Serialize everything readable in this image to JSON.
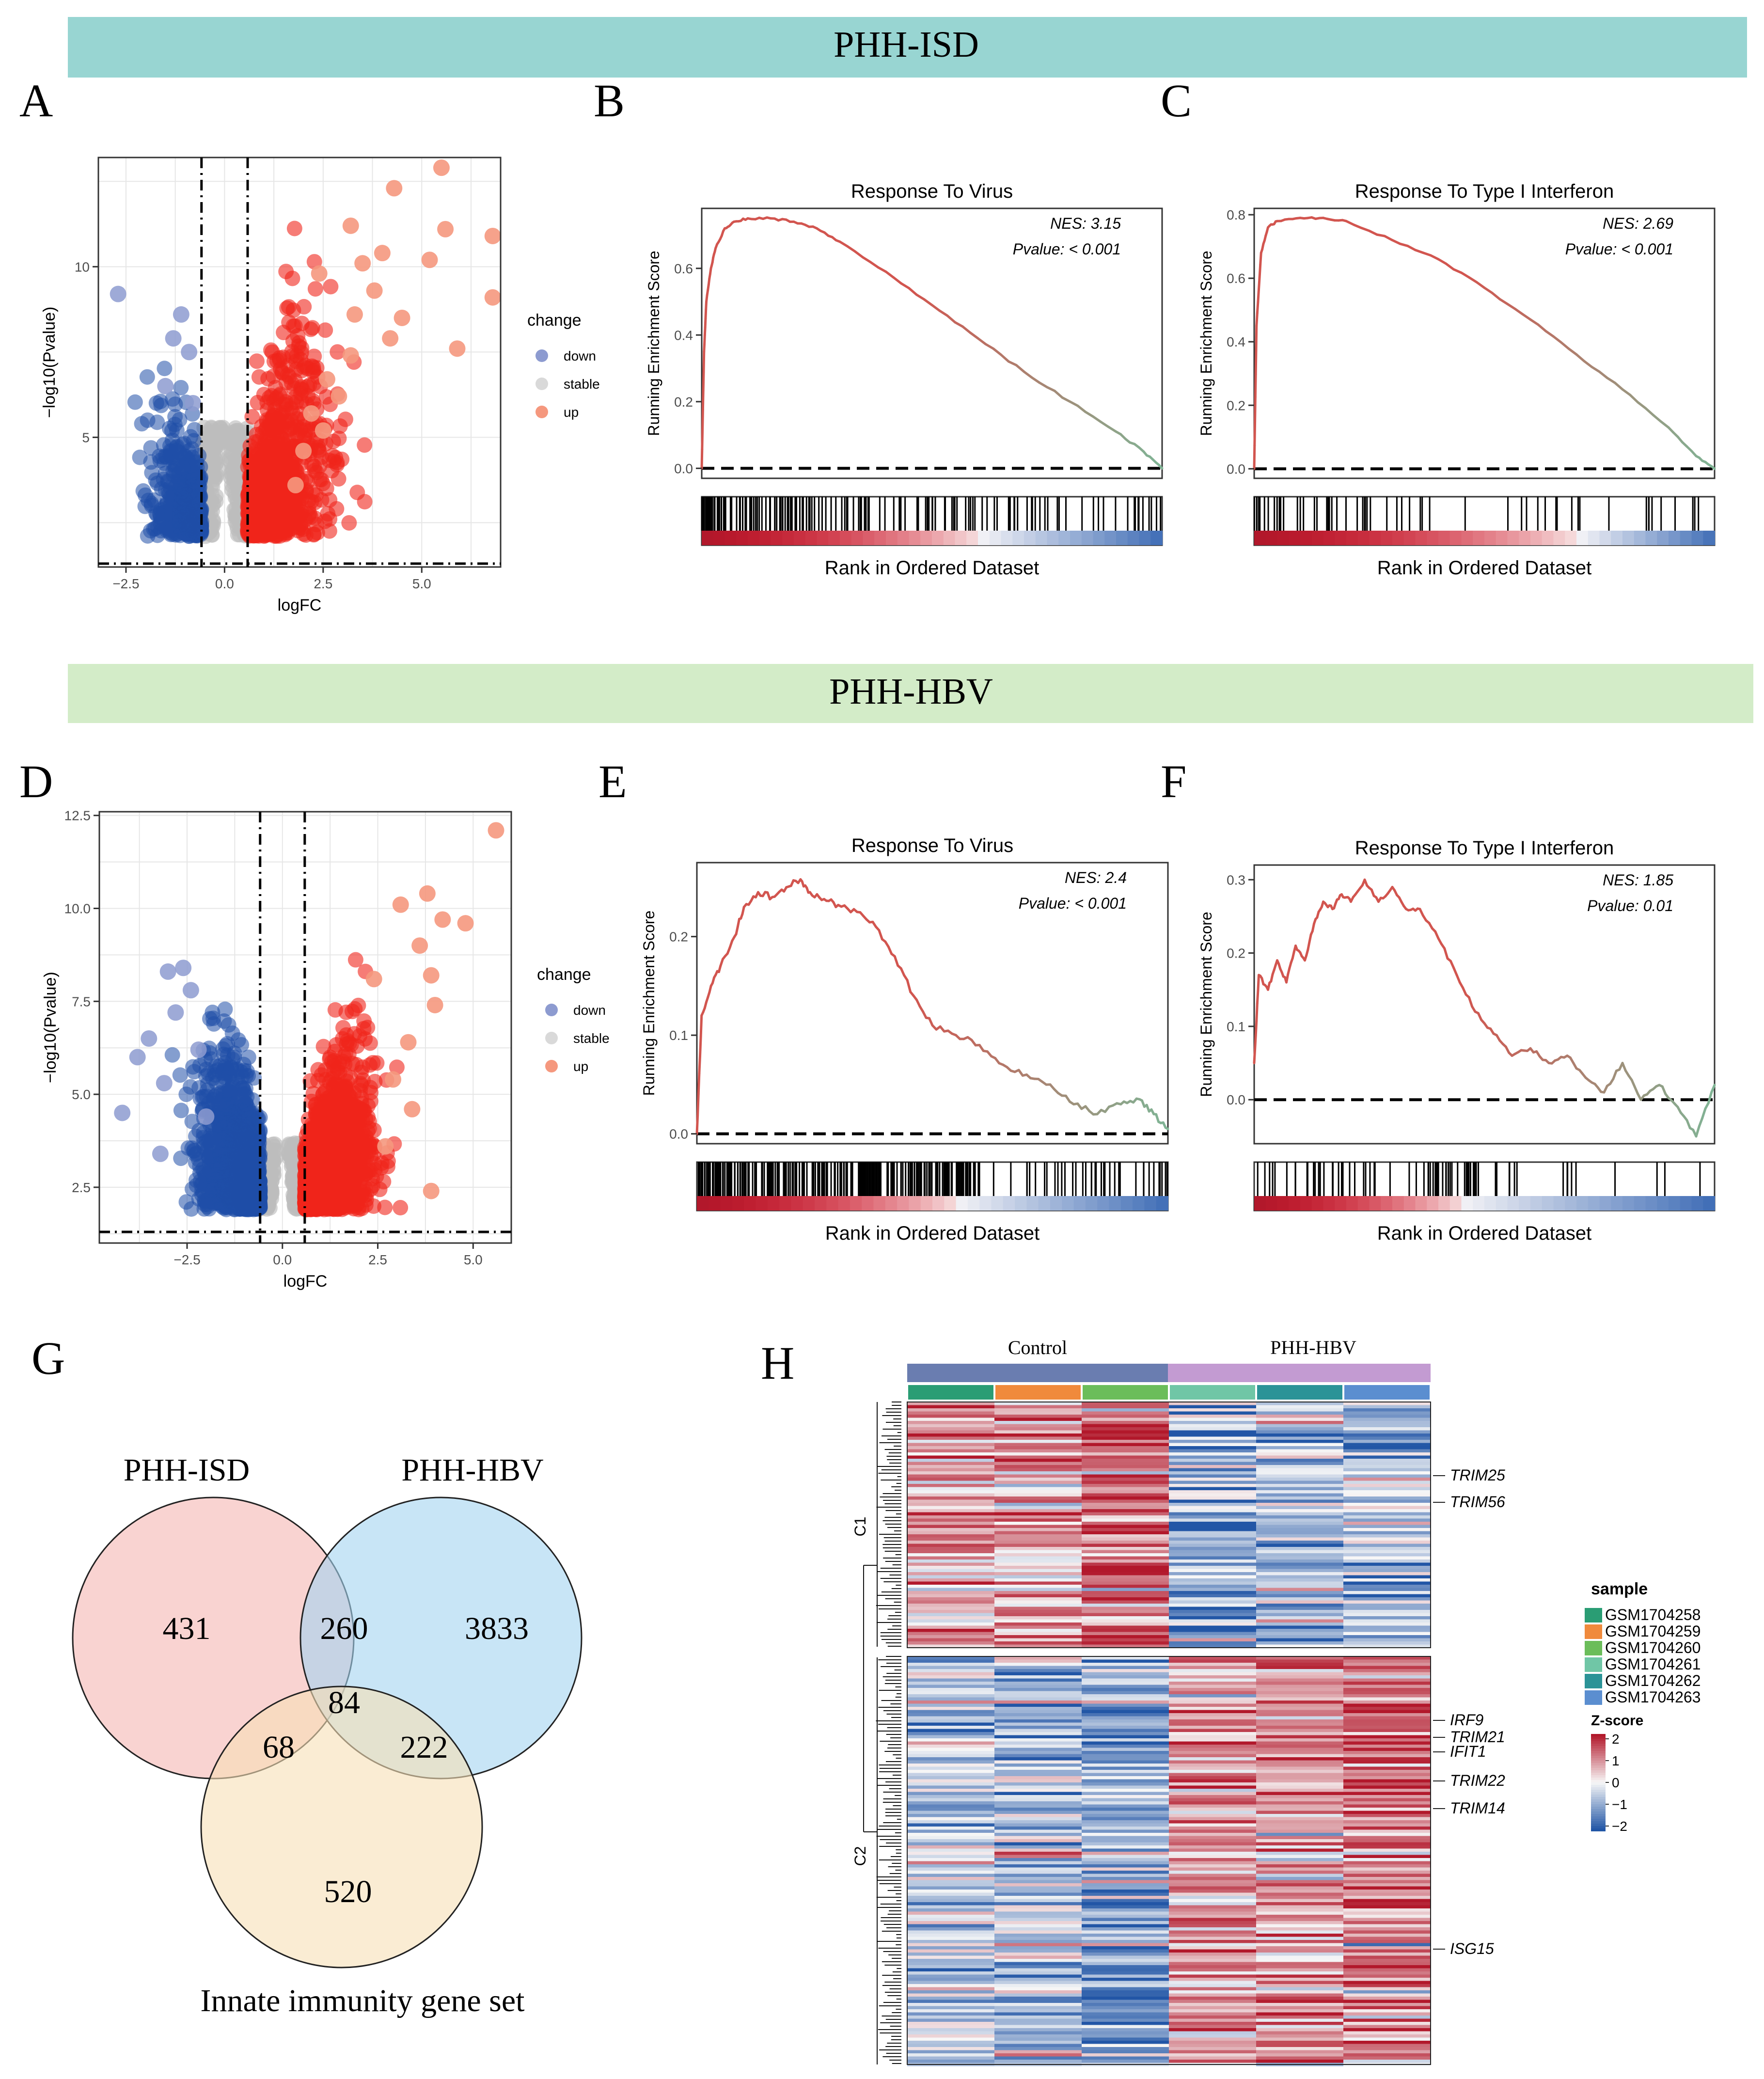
{
  "banners": [
    {
      "label": "PHH-ISD",
      "color": "#98d5d2"
    },
    {
      "label": "PHH-HBV",
      "color": "#d3ecc8"
    }
  ],
  "panel_letters": [
    "A",
    "B",
    "C",
    "D",
    "E",
    "F",
    "G",
    "H"
  ],
  "colors": {
    "down": "#1f4fa8",
    "down_light": "#8d9bd0",
    "stable": "#bdbdbd",
    "up": "#f0251a",
    "up_light": "#f5987e",
    "grid": "#e6e6e6",
    "gsea_red": "#d2554f",
    "gsea_green": "#7fb596",
    "heat_red": "#b2182b",
    "heat_white": "#f7f7f7",
    "heat_blue": "#2256a6",
    "venn_isd": "#f5b5b3",
    "venn_hbv": "#a4d4f0",
    "venn_innate": "#f6dfb5"
  },
  "chart_data": [
    {
      "id": "A",
      "type": "scatter",
      "subtype": "volcano",
      "title": "",
      "xlabel": "logFC",
      "ylabel": "−log10(Pvalue)",
      "xlim": [
        -3.2,
        7.0
      ],
      "ylim": [
        1.2,
        13.2
      ],
      "xticks": [
        -2.5,
        0.0,
        2.5,
        5.0
      ],
      "xtick_labels": [
        "−2.5",
        "0.0",
        "2.5",
        "5.0"
      ],
      "yticks": [
        5,
        10
      ],
      "ytick_labels": [
        "5",
        "10"
      ],
      "thresholds": {
        "logFC": [
          -0.585,
          0.585
        ],
        "neglog10p": 1.3
      },
      "legend": {
        "title": "change",
        "items": [
          "down",
          "stable",
          "up"
        ]
      },
      "highlight_points": {
        "down": [
          [
            -2.7,
            9.2
          ],
          [
            -1.1,
            8.6
          ],
          [
            -1.3,
            7.9
          ],
          [
            -0.9,
            7.5
          ],
          [
            -1.5,
            6.5
          ],
          [
            -0.8,
            6.0
          ]
        ],
        "up": [
          [
            5.5,
            12.9
          ],
          [
            4.3,
            12.3
          ],
          [
            5.6,
            11.1
          ],
          [
            6.8,
            10.9
          ],
          [
            3.2,
            11.2
          ],
          [
            5.2,
            10.2
          ],
          [
            6.8,
            9.1
          ],
          [
            3.8,
            9.3
          ],
          [
            5.9,
            7.6
          ],
          [
            3.3,
            8.6
          ],
          [
            4.5,
            8.5
          ],
          [
            4.2,
            7.9
          ],
          [
            2.6,
            6.7
          ],
          [
            2.9,
            6.2
          ],
          [
            2.2,
            5.7
          ],
          [
            2.5,
            5.2
          ],
          [
            3.2,
            7.4
          ],
          [
            2.0,
            4.6
          ],
          [
            3.5,
            10.1
          ],
          [
            2.4,
            9.8
          ],
          [
            4.0,
            10.4
          ],
          [
            1.8,
            3.6
          ]
        ]
      }
    },
    {
      "id": "B",
      "type": "line",
      "subtype": "gsea",
      "title": "Response To Virus",
      "ylabel": "Running Enrichment Score",
      "xlabel": "Rank in Ordered Dataset",
      "yticks": [
        0.0,
        0.2,
        0.4,
        0.6
      ],
      "ytick_labels": [
        "0.0",
        "0.2",
        "0.4",
        "0.6"
      ],
      "ylim": [
        -0.03,
        0.78
      ],
      "nes_label": "NES: 3.15",
      "pvalue_label": "Pvalue: < 0.001",
      "curve_points": [
        [
          0,
          0.0
        ],
        [
          0.005,
          0.35
        ],
        [
          0.01,
          0.5
        ],
        [
          0.02,
          0.6
        ],
        [
          0.03,
          0.66
        ],
        [
          0.05,
          0.72
        ],
        [
          0.07,
          0.74
        ],
        [
          0.1,
          0.75
        ],
        [
          0.15,
          0.75
        ],
        [
          0.2,
          0.74
        ],
        [
          0.25,
          0.72
        ],
        [
          0.3,
          0.68
        ],
        [
          0.4,
          0.59
        ],
        [
          0.5,
          0.49
        ],
        [
          0.6,
          0.39
        ],
        [
          0.7,
          0.29
        ],
        [
          0.8,
          0.2
        ],
        [
          0.9,
          0.11
        ],
        [
          0.96,
          0.05
        ],
        [
          1.0,
          0.0
        ]
      ],
      "hits": {
        "n": 180,
        "concentration": "front"
      },
      "rank_gradient": {
        "red_fraction": 0.6,
        "blue_fraction": 0.4
      }
    },
    {
      "id": "C",
      "type": "line",
      "subtype": "gsea",
      "title": "Response To Type I Interferon",
      "ylabel": "Running Enrichment Score",
      "xlabel": "Rank in Ordered Dataset",
      "yticks": [
        0.0,
        0.2,
        0.4,
        0.6,
        0.8
      ],
      "ytick_labels": [
        "0.0",
        "0.2",
        "0.4",
        "0.6",
        "0.8"
      ],
      "ylim": [
        -0.03,
        0.82
      ],
      "nes_label": "NES: 2.69",
      "pvalue_label": "Pvalue: < 0.001",
      "curve_points": [
        [
          0,
          0.0
        ],
        [
          0.005,
          0.45
        ],
        [
          0.015,
          0.68
        ],
        [
          0.03,
          0.76
        ],
        [
          0.05,
          0.78
        ],
        [
          0.1,
          0.79
        ],
        [
          0.15,
          0.79
        ],
        [
          0.2,
          0.78
        ],
        [
          0.3,
          0.72
        ],
        [
          0.4,
          0.66
        ],
        [
          0.5,
          0.57
        ],
        [
          0.6,
          0.47
        ],
        [
          0.7,
          0.36
        ],
        [
          0.8,
          0.25
        ],
        [
          0.9,
          0.13
        ],
        [
          0.96,
          0.04
        ],
        [
          1.0,
          0.0
        ]
      ],
      "hits": {
        "n": 60,
        "concentration": "front"
      },
      "rank_gradient": {
        "red_fraction": 0.7,
        "blue_fraction": 0.3
      }
    },
    {
      "id": "D",
      "type": "scatter",
      "subtype": "volcano",
      "title": "",
      "xlabel": "logFC",
      "ylabel": "−log10(Pvalue)",
      "xlim": [
        -4.8,
        6.0
      ],
      "ylim": [
        1.0,
        12.6
      ],
      "xticks": [
        -2.5,
        0.0,
        2.5,
        5.0
      ],
      "xtick_labels": [
        "−2.5",
        "0.0",
        "2.5",
        "5.0"
      ],
      "yticks": [
        2.5,
        5.0,
        7.5,
        10.0,
        12.5
      ],
      "ytick_labels": [
        "2.5",
        "5.0",
        "7.5",
        "10.0",
        "12.5"
      ],
      "thresholds": {
        "logFC": [
          -0.585,
          0.585
        ],
        "neglog10p": 1.3
      },
      "legend": {
        "title": "change",
        "items": [
          "down",
          "stable",
          "up"
        ]
      },
      "highlight_points": {
        "down": [
          [
            -4.2,
            4.5
          ],
          [
            -3.2,
            3.4
          ],
          [
            -3.0,
            8.3
          ],
          [
            -2.6,
            8.4
          ],
          [
            -3.5,
            6.5
          ],
          [
            -2.8,
            7.2
          ],
          [
            -2.2,
            6.2
          ],
          [
            -3.8,
            6.0
          ],
          [
            -3.1,
            5.3
          ],
          [
            -2.4,
            7.8
          ],
          [
            -2.0,
            4.4
          ]
        ],
        "up": [
          [
            5.6,
            12.1
          ],
          [
            3.8,
            10.4
          ],
          [
            4.2,
            9.7
          ],
          [
            4.8,
            9.6
          ],
          [
            3.6,
            9.0
          ],
          [
            3.9,
            8.2
          ],
          [
            4.0,
            7.4
          ],
          [
            3.3,
            6.4
          ],
          [
            2.9,
            5.4
          ],
          [
            3.9,
            2.4
          ],
          [
            2.7,
            3.6
          ],
          [
            3.1,
            10.1
          ],
          [
            2.4,
            8.1
          ],
          [
            3.4,
            4.6
          ]
        ]
      }
    },
    {
      "id": "E",
      "type": "line",
      "subtype": "gsea",
      "title": "Response To Virus",
      "ylabel": "Running Enrichment Score",
      "xlabel": "Rank in Ordered Dataset",
      "yticks": [
        0.0,
        0.1,
        0.2
      ],
      "ytick_labels": [
        "0.0",
        "0.1",
        "0.2"
      ],
      "ylim": [
        -0.01,
        0.275
      ],
      "nes_label": "NES: 2.4",
      "pvalue_label": "Pvalue: < 0.001",
      "curve_points": [
        [
          0,
          0.0
        ],
        [
          0.01,
          0.12
        ],
        [
          0.03,
          0.15
        ],
        [
          0.05,
          0.17
        ],
        [
          0.08,
          0.2
        ],
        [
          0.1,
          0.23
        ],
        [
          0.13,
          0.245
        ],
        [
          0.16,
          0.24
        ],
        [
          0.19,
          0.25
        ],
        [
          0.22,
          0.258
        ],
        [
          0.24,
          0.245
        ],
        [
          0.27,
          0.238
        ],
        [
          0.3,
          0.232
        ],
        [
          0.34,
          0.225
        ],
        [
          0.38,
          0.21
        ],
        [
          0.42,
          0.18
        ],
        [
          0.46,
          0.14
        ],
        [
          0.5,
          0.11
        ],
        [
          0.55,
          0.1
        ],
        [
          0.6,
          0.09
        ],
        [
          0.65,
          0.07
        ],
        [
          0.7,
          0.06
        ],
        [
          0.75,
          0.05
        ],
        [
          0.8,
          0.03
        ],
        [
          0.85,
          0.02
        ],
        [
          0.9,
          0.03
        ],
        [
          0.94,
          0.035
        ],
        [
          0.97,
          0.02
        ],
        [
          1.0,
          0.005
        ]
      ],
      "hits": {
        "n": 260,
        "concentration": "uniform"
      },
      "rank_gradient": {
        "red_fraction": 0.55,
        "blue_fraction": 0.45
      }
    },
    {
      "id": "F",
      "type": "line",
      "subtype": "gsea",
      "title": "Response To Type I Interferon",
      "ylabel": "Running Enrichment Score",
      "xlabel": "Rank in Ordered Dataset",
      "yticks": [
        0.0,
        0.1,
        0.2,
        0.3
      ],
      "ytick_labels": [
        "0.0",
        "0.1",
        "0.2",
        "0.3"
      ],
      "ylim": [
        -0.06,
        0.32
      ],
      "nes_label": "NES: 1.85",
      "pvalue_label": "Pvalue: 0.01",
      "curve_points": [
        [
          0,
          0.05
        ],
        [
          0.01,
          0.17
        ],
        [
          0.03,
          0.15
        ],
        [
          0.05,
          0.19
        ],
        [
          0.07,
          0.16
        ],
        [
          0.09,
          0.21
        ],
        [
          0.11,
          0.19
        ],
        [
          0.13,
          0.24
        ],
        [
          0.15,
          0.27
        ],
        [
          0.17,
          0.26
        ],
        [
          0.19,
          0.28
        ],
        [
          0.21,
          0.27
        ],
        [
          0.24,
          0.3
        ],
        [
          0.27,
          0.27
        ],
        [
          0.3,
          0.29
        ],
        [
          0.33,
          0.26
        ],
        [
          0.36,
          0.26
        ],
        [
          0.4,
          0.22
        ],
        [
          0.44,
          0.17
        ],
        [
          0.48,
          0.12
        ],
        [
          0.52,
          0.09
        ],
        [
          0.56,
          0.06
        ],
        [
          0.6,
          0.07
        ],
        [
          0.64,
          0.05
        ],
        [
          0.68,
          0.06
        ],
        [
          0.72,
          0.03
        ],
        [
          0.76,
          0.01
        ],
        [
          0.8,
          0.05
        ],
        [
          0.84,
          0.0
        ],
        [
          0.88,
          0.02
        ],
        [
          0.92,
          -0.01
        ],
        [
          0.96,
          -0.05
        ],
        [
          1.0,
          0.02
        ]
      ],
      "hits": {
        "n": 70,
        "concentration": "uniform"
      },
      "rank_gradient": {
        "red_fraction": 0.45,
        "blue_fraction": 0.55
      }
    },
    {
      "id": "G",
      "type": "venn",
      "sets": [
        "PHH-ISD",
        "PHH-HBV",
        "Innate immunity gene set"
      ],
      "regions": {
        "ISD_only": "431",
        "HBV_only": "3833",
        "ISD_HBV": "260",
        "all": "84",
        "ISD_innate": "68",
        "HBV_innate": "222",
        "innate_only": "520"
      }
    },
    {
      "id": "H",
      "type": "heatmap",
      "group_labels": [
        "Control",
        "PHH-HBV"
      ],
      "group_colors": [
        "#6a7db0",
        "#c39bd2"
      ],
      "samples": [
        "GSM1704258",
        "GSM1704259",
        "GSM1704260",
        "GSM1704261",
        "GSM1704262",
        "GSM1704263"
      ],
      "sample_colors": [
        "#2a9d74",
        "#f08a3c",
        "#6bbd5a",
        "#70c6a6",
        "#2b9397",
        "#5b8ed0"
      ],
      "clusters": [
        "C1",
        "C2"
      ],
      "gene_labels": [
        "TRIM25",
        "TRIM56",
        "IRF9",
        "TRIM21",
        "IFIT1",
        "TRIM22",
        "TRIM14",
        "ISG15"
      ],
      "legend_title_sample": "sample",
      "legend_title_z": "Z-score",
      "z_ticks": [
        "2",
        "1",
        "0",
        "−1",
        "−2"
      ],
      "cluster_bias": {
        "C1": [
          0.85,
          0.7,
          1.15,
          -0.9,
          -0.8,
          -0.6
        ],
        "C2": [
          -0.6,
          -0.75,
          -1.0,
          0.75,
          0.85,
          1.1
        ]
      }
    }
  ]
}
